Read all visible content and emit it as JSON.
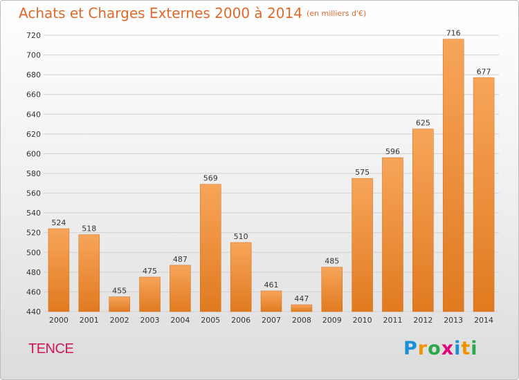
{
  "title": {
    "main": "Achats et Charges Externes 2000 à 2014",
    "unit": "(en milliers d'€)"
  },
  "location": "TENCE",
  "brand": {
    "text": "Proxiti",
    "letters": [
      {
        "ch": "P",
        "color": "#1a8fd6"
      },
      {
        "ch": "r",
        "color": "#f39200"
      },
      {
        "ch": "o",
        "color": "#2aa84a"
      },
      {
        "ch": "x",
        "color": "#e2007a"
      },
      {
        "ch": "i",
        "color": "#1a8fd6"
      },
      {
        "ch": "t",
        "color": "#f39200"
      },
      {
        "ch": "i",
        "color": "#2aa84a"
      }
    ]
  },
  "colors": {
    "title": "#e0692a",
    "location": "#d4145a",
    "bar_light": "#f7a55a",
    "bar_dark": "#e07a20",
    "grid": "#d0d0d0",
    "axis_text": "#333333"
  },
  "chart_data": {
    "type": "bar",
    "title": "Achats et Charges Externes 2000 à 2014",
    "subtitle": "(en milliers d'€)",
    "xlabel": "",
    "ylabel": "",
    "categories": [
      "2000",
      "2001",
      "2002",
      "2003",
      "2004",
      "2005",
      "2006",
      "2007",
      "2008",
      "2009",
      "2010",
      "2011",
      "2012",
      "2013",
      "2014"
    ],
    "values": [
      524,
      518,
      455,
      475,
      487,
      569,
      510,
      461,
      447,
      485,
      575,
      596,
      625,
      716,
      677
    ],
    "ylim": [
      440,
      720
    ],
    "yticks": [
      440,
      460,
      480,
      500,
      520,
      540,
      560,
      580,
      600,
      620,
      640,
      660,
      680,
      700,
      720
    ],
    "grid": true,
    "data_labels": true
  }
}
